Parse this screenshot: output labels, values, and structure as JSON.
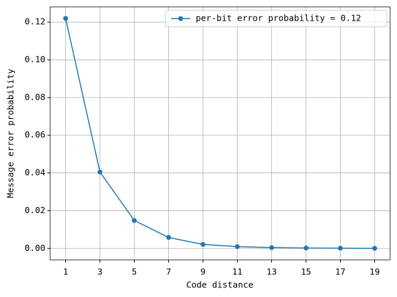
{
  "chart_data": {
    "type": "line",
    "x_label": "Code distance",
    "y_label": "Message error probability",
    "x": [
      1,
      3,
      5,
      7,
      9,
      11,
      13,
      15,
      17,
      19
    ],
    "series": [
      {
        "name": "per-bit error probability = 0.12",
        "color": "#1f77b4",
        "values": [
          0.122,
          0.0405,
          0.0148,
          0.0058,
          0.0021,
          0.0009,
          0.0004,
          0.0002,
          0.0001,
          0.0
        ]
      }
    ],
    "xlim": [
      0.1,
      19.9
    ],
    "ylim": [
      -0.0061,
      0.1281
    ],
    "xticks": [
      1,
      3,
      5,
      7,
      9,
      11,
      13,
      15,
      17,
      19
    ],
    "yticks": [
      {
        "value": 0,
        "label": "0.00"
      },
      {
        "value": 0.02,
        "label": "0.02"
      },
      {
        "value": 0.04,
        "label": "0.04"
      },
      {
        "value": 0.06,
        "label": "0.06"
      },
      {
        "value": 0.08,
        "label": "0.08"
      },
      {
        "value": 0.1,
        "label": "0.10"
      },
      {
        "value": 0.12,
        "label": "0.12"
      }
    ],
    "grid": true,
    "legend": "upper right"
  }
}
